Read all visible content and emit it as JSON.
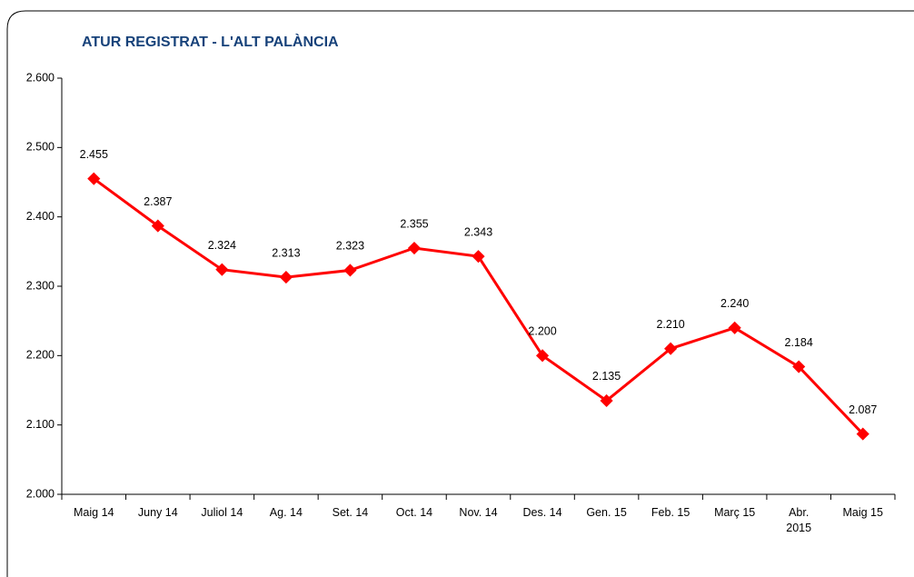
{
  "chart_data": {
    "type": "line",
    "title": "ATUR REGISTRAT - L'ALT PALÀNCIA",
    "categories": [
      "Maig 14",
      "Juny 14",
      "Juliol 14",
      "Ag. 14",
      "Set. 14",
      "Oct. 14",
      "Nov. 14",
      "Des. 14",
      "Gen. 15",
      "Feb. 15",
      "Març 15",
      "Abr.\n2015",
      "Maig 15"
    ],
    "series": [
      {
        "name": "Atur registrat",
        "color": "#ff0000",
        "values": [
          2455,
          2387,
          2324,
          2313,
          2323,
          2355,
          2343,
          2200,
          2135,
          2210,
          2240,
          2184,
          2087
        ],
        "value_labels": [
          "2.455",
          "2.387",
          "2.324",
          "2.313",
          "2.323",
          "2.355",
          "2.343",
          "2.200",
          "2.135",
          "2.210",
          "2.240",
          "2.184",
          "2.087"
        ]
      }
    ],
    "ylim": [
      2000,
      2600
    ],
    "yticks": [
      {
        "value": 2000,
        "label": "2.000"
      },
      {
        "value": 2100,
        "label": "2.100"
      },
      {
        "value": 2200,
        "label": "2.200"
      },
      {
        "value": 2300,
        "label": "2.300"
      },
      {
        "value": 2400,
        "label": "2.400"
      },
      {
        "value": 2500,
        "label": "2.500"
      },
      {
        "value": 2600,
        "label": "2.600"
      }
    ]
  }
}
